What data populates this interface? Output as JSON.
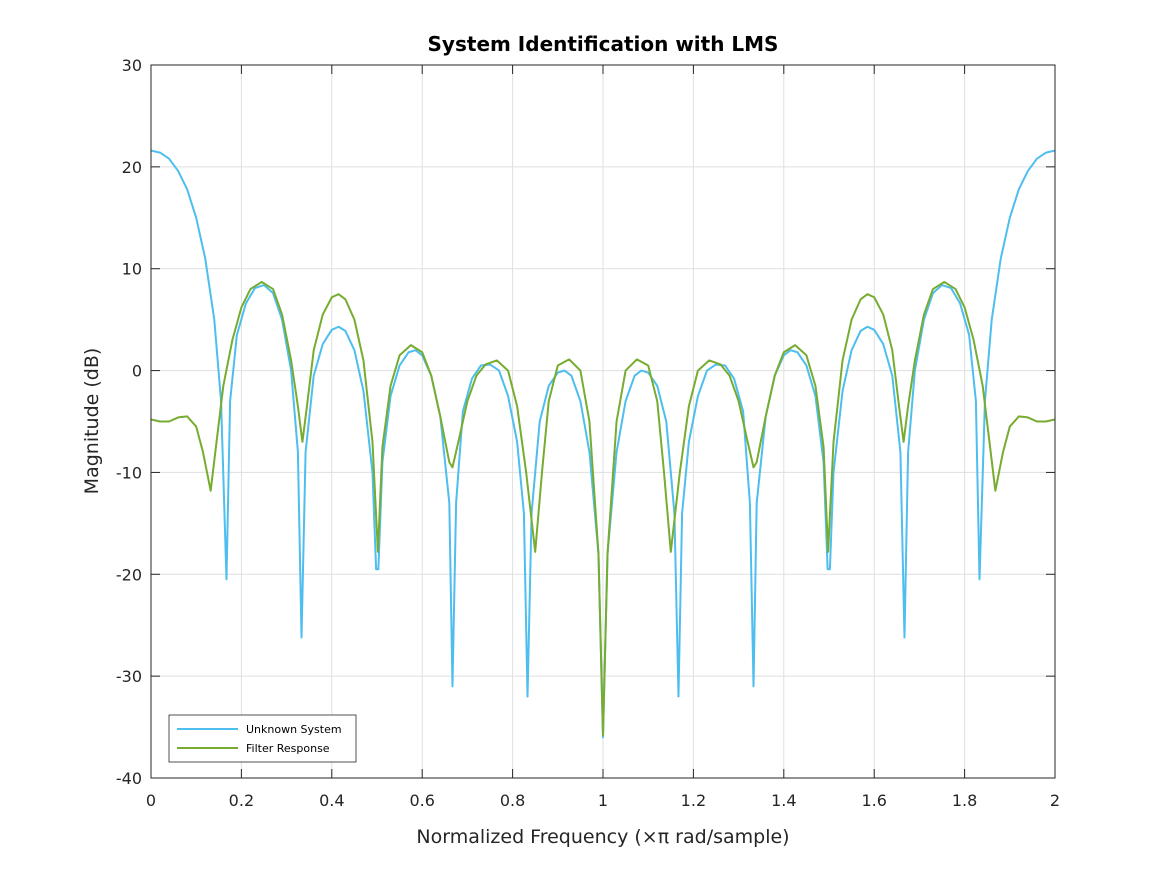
{
  "chart_data": {
    "type": "line",
    "title": "System Identification with LMS",
    "xlabel": "Normalized Frequency (×π rad/sample)",
    "ylabel": "Magnitude (dB)",
    "xlim": [
      0,
      2
    ],
    "ylim": [
      -40,
      30
    ],
    "xticks": [
      0,
      0.2,
      0.4,
      0.6,
      0.8,
      1,
      1.2,
      1.4,
      1.6,
      1.8,
      2
    ],
    "xtick_labels": [
      "0",
      "0.2",
      "0.4",
      "0.6",
      "0.8",
      "1",
      "1.2",
      "1.4",
      "1.6",
      "1.8",
      "2"
    ],
    "yticks": [
      -40,
      -30,
      -20,
      -10,
      0,
      10,
      20,
      30
    ],
    "ytick_labels": [
      "-40",
      "-30",
      "-20",
      "-10",
      "0",
      "10",
      "20",
      "30"
    ],
    "grid": true,
    "legend_position": "bottom-left",
    "series": [
      {
        "name": "Unknown System",
        "color": "#4DBEEE",
        "points": [
          [
            0.0,
            21.6
          ],
          [
            0.02,
            21.4
          ],
          [
            0.04,
            20.8
          ],
          [
            0.06,
            19.6
          ],
          [
            0.08,
            17.8
          ],
          [
            0.1,
            15.0
          ],
          [
            0.12,
            11.0
          ],
          [
            0.14,
            5.0
          ],
          [
            0.155,
            -3.0
          ],
          [
            0.167,
            -20.5
          ],
          [
            0.175,
            -3.0
          ],
          [
            0.19,
            3.5
          ],
          [
            0.21,
            6.6
          ],
          [
            0.23,
            8.1
          ],
          [
            0.25,
            8.4
          ],
          [
            0.27,
            7.6
          ],
          [
            0.29,
            5.0
          ],
          [
            0.31,
            0.0
          ],
          [
            0.325,
            -8.0
          ],
          [
            0.333,
            -26.2
          ],
          [
            0.342,
            -8.0
          ],
          [
            0.36,
            -0.5
          ],
          [
            0.38,
            2.6
          ],
          [
            0.4,
            4.0
          ],
          [
            0.415,
            4.3
          ],
          [
            0.43,
            3.9
          ],
          [
            0.45,
            2.0
          ],
          [
            0.47,
            -2.0
          ],
          [
            0.49,
            -10.0
          ],
          [
            0.498,
            -19.5
          ],
          [
            0.503,
            -19.5
          ],
          [
            0.512,
            -9.0
          ],
          [
            0.53,
            -2.5
          ],
          [
            0.55,
            0.5
          ],
          [
            0.57,
            1.8
          ],
          [
            0.585,
            2.0
          ],
          [
            0.6,
            1.5
          ],
          [
            0.62,
            -0.5
          ],
          [
            0.64,
            -4.5
          ],
          [
            0.66,
            -13.0
          ],
          [
            0.667,
            -31.0
          ],
          [
            0.675,
            -13.0
          ],
          [
            0.69,
            -4.0
          ],
          [
            0.71,
            -0.8
          ],
          [
            0.73,
            0.5
          ],
          [
            0.75,
            0.6
          ],
          [
            0.77,
            0.0
          ],
          [
            0.79,
            -2.5
          ],
          [
            0.81,
            -7.0
          ],
          [
            0.825,
            -14.0
          ],
          [
            0.833,
            -32.0
          ],
          [
            0.842,
            -14.0
          ],
          [
            0.86,
            -5.0
          ],
          [
            0.88,
            -1.5
          ],
          [
            0.9,
            -0.2
          ],
          [
            0.915,
            0.0
          ],
          [
            0.93,
            -0.5
          ],
          [
            0.95,
            -3.0
          ],
          [
            0.97,
            -8.0
          ],
          [
            0.99,
            -18.0
          ],
          [
            1.0,
            -36.0
          ],
          [
            1.01,
            -18.0
          ],
          [
            1.03,
            -8.0
          ],
          [
            1.05,
            -3.0
          ],
          [
            1.07,
            -0.5
          ],
          [
            1.085,
            0.0
          ],
          [
            1.1,
            -0.2
          ],
          [
            1.12,
            -1.5
          ],
          [
            1.14,
            -5.0
          ],
          [
            1.158,
            -14.0
          ],
          [
            1.167,
            -32.0
          ],
          [
            1.175,
            -14.0
          ],
          [
            1.19,
            -7.0
          ],
          [
            1.21,
            -2.5
          ],
          [
            1.23,
            0.0
          ],
          [
            1.25,
            0.6
          ],
          [
            1.27,
            0.5
          ],
          [
            1.29,
            -0.8
          ],
          [
            1.31,
            -4.0
          ],
          [
            1.325,
            -13.0
          ],
          [
            1.333,
            -31.0
          ],
          [
            1.34,
            -13.0
          ],
          [
            1.36,
            -4.5
          ],
          [
            1.38,
            -0.5
          ],
          [
            1.4,
            1.5
          ],
          [
            1.415,
            2.0
          ],
          [
            1.43,
            1.8
          ],
          [
            1.45,
            0.5
          ],
          [
            1.47,
            -2.5
          ],
          [
            1.488,
            -9.0
          ],
          [
            1.497,
            -19.5
          ],
          [
            1.502,
            -19.5
          ],
          [
            1.51,
            -10.0
          ],
          [
            1.53,
            -2.0
          ],
          [
            1.55,
            2.0
          ],
          [
            1.57,
            3.9
          ],
          [
            1.585,
            4.3
          ],
          [
            1.6,
            4.0
          ],
          [
            1.62,
            2.6
          ],
          [
            1.64,
            -0.5
          ],
          [
            1.658,
            -8.0
          ],
          [
            1.667,
            -26.2
          ],
          [
            1.675,
            -8.0
          ],
          [
            1.69,
            0.0
          ],
          [
            1.71,
            5.0
          ],
          [
            1.73,
            7.6
          ],
          [
            1.75,
            8.4
          ],
          [
            1.77,
            8.1
          ],
          [
            1.79,
            6.6
          ],
          [
            1.81,
            3.5
          ],
          [
            1.825,
            -3.0
          ],
          [
            1.833,
            -20.5
          ],
          [
            1.845,
            -3.0
          ],
          [
            1.86,
            5.0
          ],
          [
            1.88,
            11.0
          ],
          [
            1.9,
            15.0
          ],
          [
            1.92,
            17.8
          ],
          [
            1.94,
            19.6
          ],
          [
            1.96,
            20.8
          ],
          [
            1.98,
            21.4
          ],
          [
            2.0,
            21.6
          ]
        ]
      },
      {
        "name": "Filter Response",
        "color": "#77AC30",
        "points": [
          [
            0.0,
            -4.8
          ],
          [
            0.02,
            -5.0
          ],
          [
            0.04,
            -5.0
          ],
          [
            0.06,
            -4.6
          ],
          [
            0.08,
            -4.5
          ],
          [
            0.1,
            -5.5
          ],
          [
            0.115,
            -8.0
          ],
          [
            0.132,
            -11.8
          ],
          [
            0.145,
            -7.0
          ],
          [
            0.16,
            -1.5
          ],
          [
            0.18,
            3.0
          ],
          [
            0.2,
            6.2
          ],
          [
            0.22,
            8.0
          ],
          [
            0.245,
            8.7
          ],
          [
            0.27,
            8.0
          ],
          [
            0.29,
            5.5
          ],
          [
            0.31,
            1.0
          ],
          [
            0.325,
            -3.5
          ],
          [
            0.335,
            -7.0
          ],
          [
            0.345,
            -3.5
          ],
          [
            0.36,
            2.0
          ],
          [
            0.38,
            5.5
          ],
          [
            0.4,
            7.2
          ],
          [
            0.415,
            7.5
          ],
          [
            0.43,
            7.0
          ],
          [
            0.45,
            5.0
          ],
          [
            0.47,
            1.0
          ],
          [
            0.49,
            -7.0
          ],
          [
            0.502,
            -17.8
          ],
          [
            0.512,
            -7.5
          ],
          [
            0.53,
            -1.5
          ],
          [
            0.55,
            1.5
          ],
          [
            0.575,
            2.5
          ],
          [
            0.6,
            1.8
          ],
          [
            0.62,
            -0.5
          ],
          [
            0.64,
            -4.5
          ],
          [
            0.66,
            -9.0
          ],
          [
            0.667,
            -9.5
          ],
          [
            0.68,
            -7.0
          ],
          [
            0.7,
            -3.0
          ],
          [
            0.72,
            -0.5
          ],
          [
            0.74,
            0.6
          ],
          [
            0.765,
            1.0
          ],
          [
            0.79,
            0.0
          ],
          [
            0.81,
            -3.5
          ],
          [
            0.83,
            -10.0
          ],
          [
            0.85,
            -17.8
          ],
          [
            0.865,
            -10.0
          ],
          [
            0.88,
            -3.0
          ],
          [
            0.9,
            0.5
          ],
          [
            0.925,
            1.1
          ],
          [
            0.95,
            0.0
          ],
          [
            0.97,
            -5.0
          ],
          [
            0.99,
            -18.0
          ],
          [
            1.0,
            -35.8
          ],
          [
            1.01,
            -18.0
          ],
          [
            1.03,
            -5.0
          ],
          [
            1.05,
            0.0
          ],
          [
            1.075,
            1.1
          ],
          [
            1.1,
            0.5
          ],
          [
            1.12,
            -3.0
          ],
          [
            1.135,
            -10.0
          ],
          [
            1.15,
            -17.8
          ],
          [
            1.17,
            -10.0
          ],
          [
            1.19,
            -3.5
          ],
          [
            1.21,
            0.0
          ],
          [
            1.235,
            1.0
          ],
          [
            1.26,
            0.6
          ],
          [
            1.28,
            -0.5
          ],
          [
            1.3,
            -3.0
          ],
          [
            1.32,
            -7.0
          ],
          [
            1.333,
            -9.5
          ],
          [
            1.34,
            -9.0
          ],
          [
            1.36,
            -4.5
          ],
          [
            1.38,
            -0.5
          ],
          [
            1.4,
            1.8
          ],
          [
            1.425,
            2.5
          ],
          [
            1.45,
            1.5
          ],
          [
            1.47,
            -1.5
          ],
          [
            1.488,
            -7.5
          ],
          [
            1.498,
            -17.8
          ],
          [
            1.51,
            -7.0
          ],
          [
            1.53,
            1.0
          ],
          [
            1.55,
            5.0
          ],
          [
            1.57,
            7.0
          ],
          [
            1.585,
            7.5
          ],
          [
            1.6,
            7.2
          ],
          [
            1.62,
            5.5
          ],
          [
            1.64,
            2.0
          ],
          [
            1.655,
            -3.5
          ],
          [
            1.665,
            -7.0
          ],
          [
            1.675,
            -3.5
          ],
          [
            1.69,
            1.0
          ],
          [
            1.71,
            5.5
          ],
          [
            1.73,
            8.0
          ],
          [
            1.755,
            8.7
          ],
          [
            1.78,
            8.0
          ],
          [
            1.8,
            6.2
          ],
          [
            1.82,
            3.0
          ],
          [
            1.84,
            -1.5
          ],
          [
            1.855,
            -7.0
          ],
          [
            1.868,
            -11.8
          ],
          [
            1.885,
            -8.0
          ],
          [
            1.9,
            -5.5
          ],
          [
            1.92,
            -4.5
          ],
          [
            1.94,
            -4.6
          ],
          [
            1.96,
            -5.0
          ],
          [
            1.98,
            -5.0
          ],
          [
            2.0,
            -4.8
          ]
        ]
      }
    ]
  }
}
